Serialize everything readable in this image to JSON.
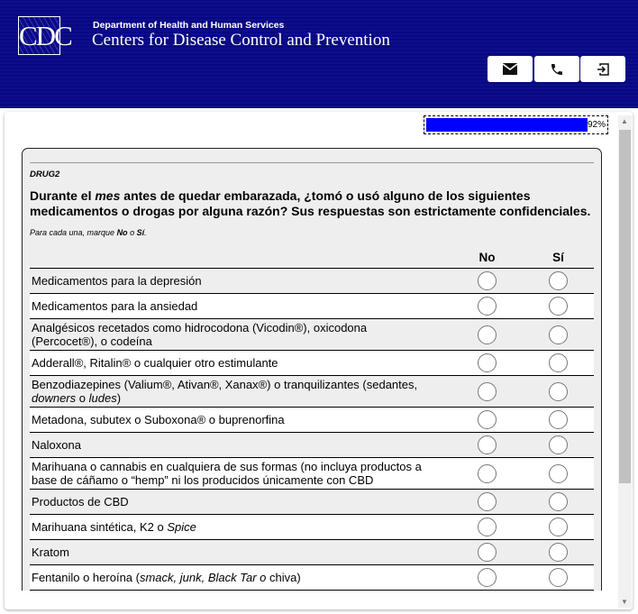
{
  "header": {
    "logo": "CDC",
    "department": "Department of Health and Human Services",
    "agency": "Centers for Disease Control and Prevention",
    "buttons": [
      {
        "icon": "mail-icon"
      },
      {
        "icon": "phone-icon"
      },
      {
        "icon": "exit-icon"
      }
    ],
    "bg_color": "#0a0a8a"
  },
  "progress": {
    "value": 92,
    "label": "92%",
    "color": "#0000ff"
  },
  "question": {
    "id": "DRUG2",
    "text_before": "Durante el ",
    "text_em": "mes",
    "text_after": " antes de quedar embarazada, ¿tomó o usó alguno de los siguientes medicamentos o drogas por alguna razón? Sus respuestas son estrictamente confidenciales.",
    "instr_a": "Para cada una, marque ",
    "instr_no": "No",
    "instr_o": " o ",
    "instr_si": "Sí",
    "instr_end": ".",
    "columns": [
      "No",
      "Sí"
    ],
    "rows": [
      {
        "parts": [
          {
            "t": "Medicamentos para la depresión"
          }
        ]
      },
      {
        "parts": [
          {
            "t": "Medicamentos para la ansiedad"
          }
        ]
      },
      {
        "parts": [
          {
            "t": "Analgésicos recetados como hidrocodona (Vicodin®), oxicodona (Percocet®), o codeína"
          }
        ]
      },
      {
        "parts": [
          {
            "t": "Adderall®, Ritalin® o cualquier otro estimulante"
          }
        ]
      },
      {
        "parts": [
          {
            "t": "Benzodiazepines (Valium®, Ativan®, Xanax®) o tranquilizantes (sedantes, "
          },
          {
            "t": "downers",
            "i": true
          },
          {
            "t": " o "
          },
          {
            "t": "ludes",
            "i": true
          },
          {
            "t": ")"
          }
        ]
      },
      {
        "parts": [
          {
            "t": "Metadona, subutex o Suboxona® o buprenorfina"
          }
        ]
      },
      {
        "parts": [
          {
            "t": "Naloxona"
          }
        ]
      },
      {
        "parts": [
          {
            "t": "Marihuana o cannabis en cualquiera de sus formas (no incluya productos a base de cáñamo o “hemp” ni los producidos únicamente con CBD"
          }
        ]
      },
      {
        "parts": [
          {
            "t": "Productos de CBD"
          }
        ]
      },
      {
        "parts": [
          {
            "t": "Marihuana sintética, K2 o "
          },
          {
            "t": "Spice",
            "i": true
          }
        ]
      },
      {
        "parts": [
          {
            "t": "Kratom"
          }
        ]
      },
      {
        "parts": [
          {
            "t": "Fentanilo o heroína ("
          },
          {
            "t": "smack, junk, Black Tar o",
            "i": true
          },
          {
            "t": " chiva)"
          }
        ]
      }
    ]
  }
}
